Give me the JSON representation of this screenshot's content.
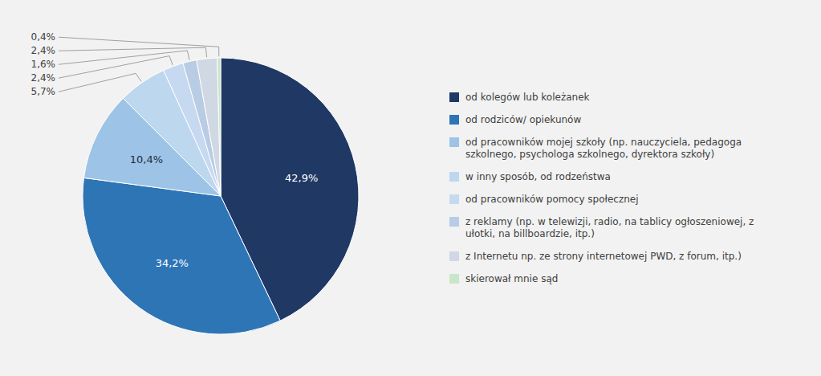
{
  "chart_data": {
    "type": "pie",
    "categories": [
      "od kolegów lub koleżanek",
      "od rodziców/ opiekunów",
      "od pracowników mojej szkoły (np. nauczyciela, pedagoga\nszkolnego, psychologa szkolnego, dyrektora szkoły)",
      "w inny sposób, od rodzeństwa",
      "od pracowników pomocy społecznej",
      "z reklamy (np. w telewizji, radio, na tablicy ogłoszeniowej, z\nułotki, na billboardzie, itp.)",
      "z Internetu np. ze strony internetowej PWD, z forum, itp.)",
      "skierował mnie sąd"
    ],
    "values": [
      42.9,
      34.2,
      10.4,
      5.7,
      2.4,
      1.6,
      2.4,
      0.4
    ],
    "value_labels": [
      "42,9%",
      "34,2%",
      "10,4%",
      "5,7%",
      "2,4%",
      "1,6%",
      "2,4%",
      "0,4%"
    ],
    "colors": [
      "#1f3864",
      "#2e75b6",
      "#9dc3e6",
      "#bdd7ee",
      "#c6d9f0",
      "#b8cce4",
      "#d0d8e4",
      "#c8e6c9"
    ],
    "data_labels": true,
    "legend": "right"
  }
}
